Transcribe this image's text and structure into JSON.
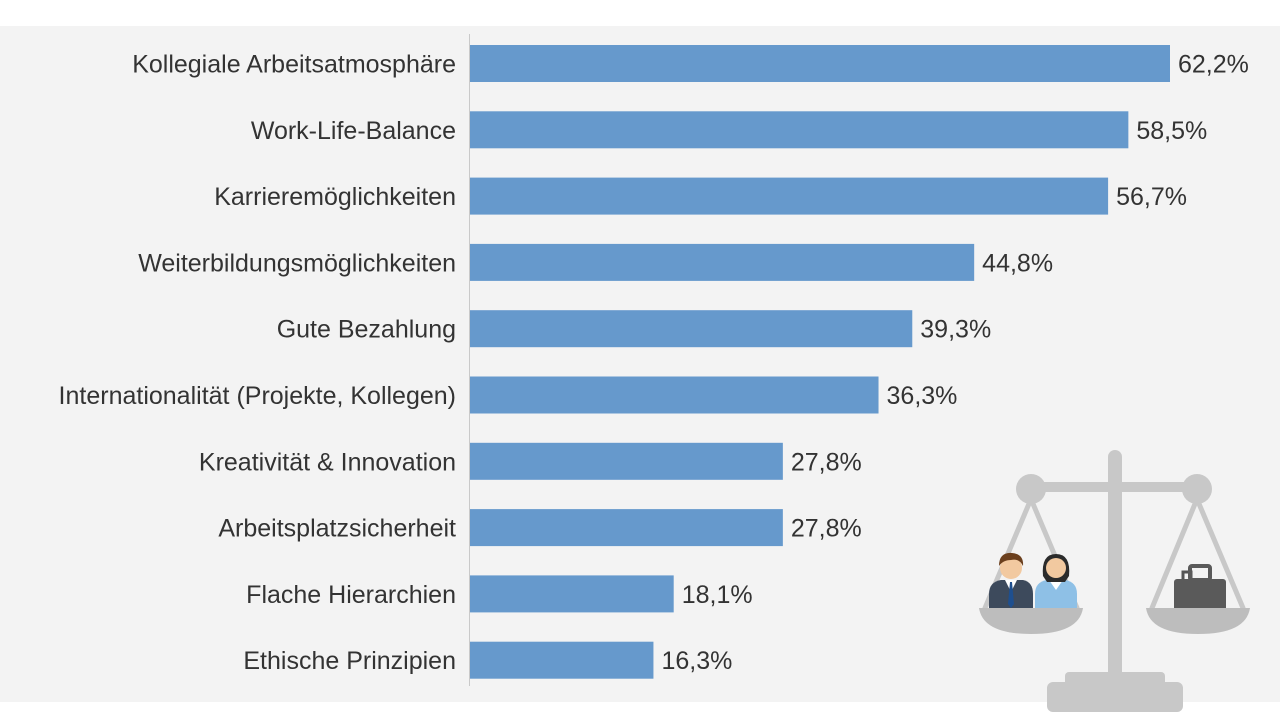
{
  "chart_data": {
    "type": "bar",
    "orientation": "horizontal",
    "title": "",
    "xlabel": "",
    "ylabel": "",
    "xlim": [
      0,
      62.2
    ],
    "grid": false,
    "legend": "none",
    "categories": [
      "Kollegiale Arbeitsatmosphäre",
      "Work-Life-Balance",
      "Karrieremöglichkeiten",
      "Weiterbildungsmöglichkeiten",
      "Gute Bezahlung",
      "Internationalität (Projekte, Kollegen)",
      "Kreativität & Innovation",
      "Arbeitsplatzsicherheit",
      "Flache Hierarchien",
      "Ethische Prinzipien"
    ],
    "values": [
      62.2,
      58.5,
      56.7,
      44.8,
      39.3,
      36.3,
      27.8,
      27.8,
      18.1,
      16.3
    ],
    "value_labels": [
      "62,2%",
      "58,5%",
      "56,7%",
      "44,8%",
      "39,3%",
      "36,3%",
      "27,8%",
      "27,8%",
      "18,1%",
      "16,3%"
    ],
    "bar_color": "#6699cc",
    "background_color": "#f3f3f3"
  },
  "illustration": {
    "icon": "balance-scale-icon",
    "left_pan_icon": "people-icon",
    "right_pan_icon": "briefcase-icon",
    "color": "#c8c8c8"
  }
}
